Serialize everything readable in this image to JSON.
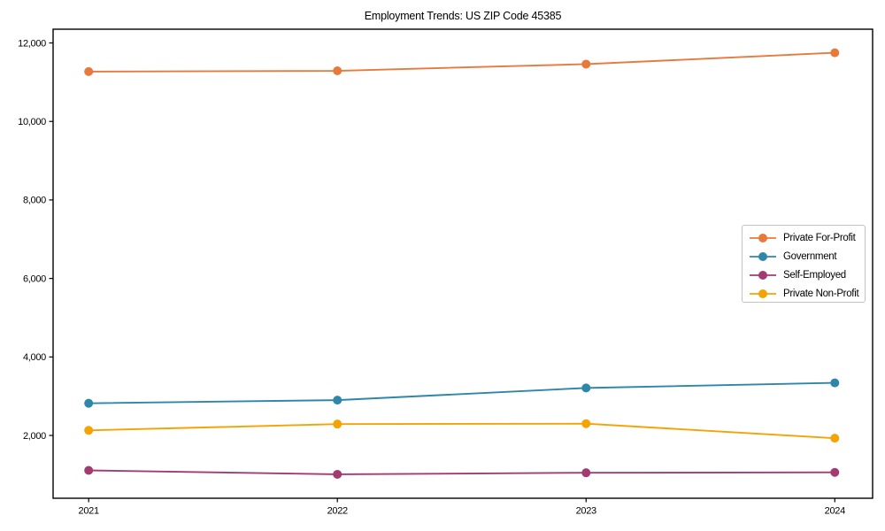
{
  "figure": {
    "title": "Employment Trends: US ZIP Code 45385"
  },
  "chart_data": {
    "type": "line",
    "title": "Employment Trends: US ZIP Code 45385",
    "xlabel": "",
    "ylabel": "",
    "x": [
      2021,
      2022,
      2023,
      2024
    ],
    "xtick_labels": [
      "2021",
      "2022",
      "2023",
      "2024"
    ],
    "yticks": [
      2000,
      4000,
      6000,
      8000,
      10000,
      12000
    ],
    "ytick_labels": [
      "2,000",
      "4,000",
      "6,000",
      "8,000",
      "10,000",
      "12,000"
    ],
    "xlim": [
      2020.857,
      2024.152
    ],
    "ylim": [
      400,
      12350
    ],
    "grid": false,
    "legend_position": "center right",
    "marker": "o",
    "series": [
      {
        "name": "Private For-Profit",
        "color": "#E8793D",
        "values": [
          11270,
          11290,
          11460,
          11750
        ]
      },
      {
        "name": "Government",
        "color": "#2E86AB",
        "values": [
          2820,
          2900,
          3210,
          3340
        ]
      },
      {
        "name": "Self-Employed",
        "color": "#A23B72",
        "values": [
          1110,
          1010,
          1050,
          1060
        ]
      },
      {
        "name": "Private Non-Profit",
        "color": "#F4A302",
        "values": [
          2130,
          2290,
          2300,
          1930
        ]
      }
    ]
  }
}
